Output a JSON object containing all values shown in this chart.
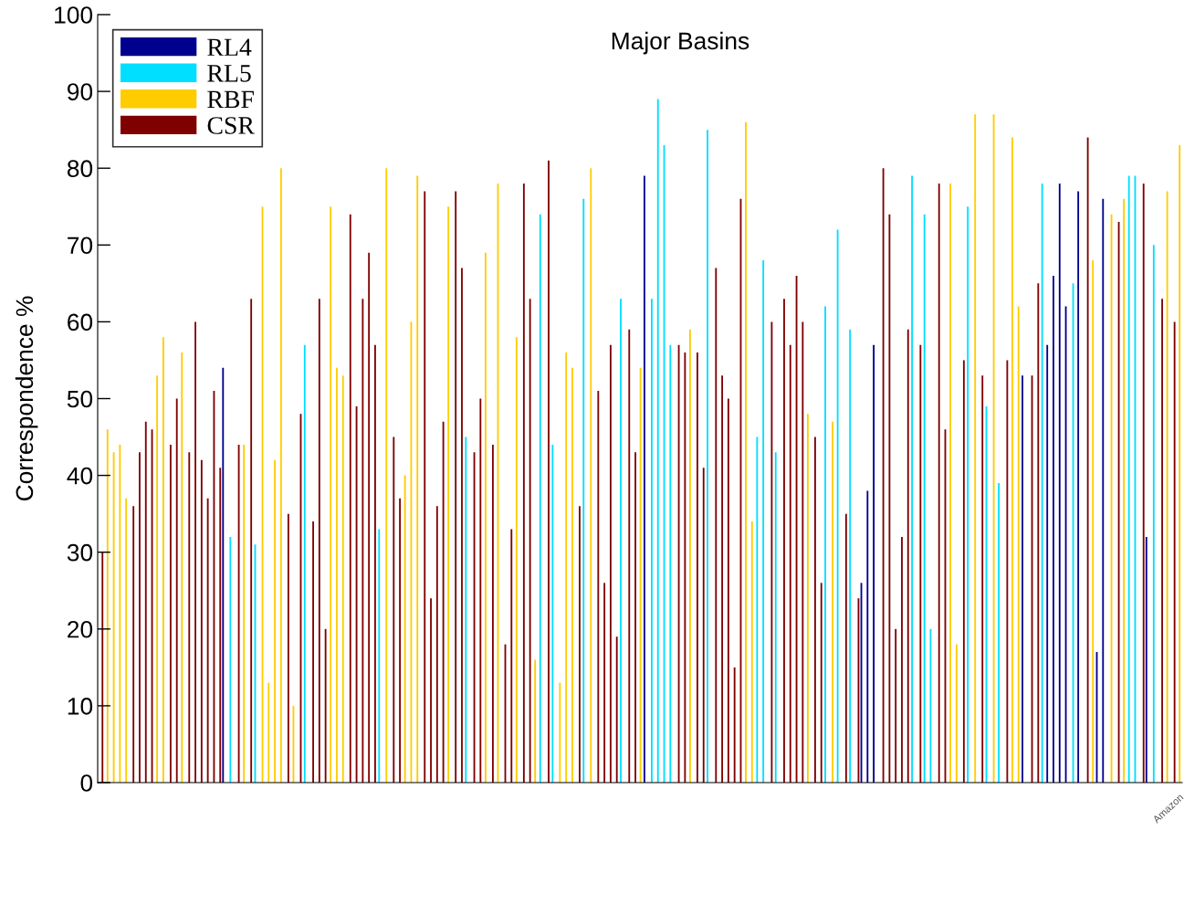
{
  "chart_data": {
    "type": "bar",
    "title": "Major Basins",
    "ylabel": "Correspondence %",
    "categories": [
      null,
      null,
      null,
      null,
      null,
      null,
      null,
      null,
      null,
      null,
      null,
      null,
      null,
      null,
      null,
      null,
      null,
      null,
      null,
      null,
      null,
      null,
      null,
      null,
      null,
      null,
      null,
      null,
      null,
      null,
      null,
      null,
      null,
      null,
      null,
      null,
      null,
      null,
      null,
      null,
      null,
      null,
      null,
      null,
      null,
      null,
      null,
      null,
      null,
      null,
      null,
      null,
      null,
      null,
      null,
      null,
      null,
      null,
      null,
      null,
      null,
      null,
      null,
      null,
      null,
      null,
      null,
      null,
      null,
      null,
      null,
      null,
      null,
      null,
      null,
      null,
      null,
      null,
      null,
      null,
      null,
      null,
      null,
      null,
      null,
      null,
      null,
      null,
      null,
      null,
      null,
      null,
      null,
      null,
      null,
      null,
      null,
      null,
      null,
      null,
      null,
      null,
      null,
      null,
      null,
      null,
      null,
      null,
      null,
      null,
      null,
      null,
      null,
      null,
      null,
      null,
      null,
      null,
      null,
      null,
      null,
      null,
      null,
      null,
      null,
      null,
      null,
      null,
      null,
      null,
      null,
      null,
      null,
      null,
      null,
      null,
      null,
      null,
      null,
      null,
      null,
      null,
      null,
      null,
      null,
      null,
      null,
      null,
      null,
      null,
      null,
      null,
      null,
      null,
      null,
      null,
      null,
      null,
      null,
      null,
      null,
      null,
      null,
      null,
      null,
      null,
      null,
      null,
      null,
      null,
      null,
      null,
      null,
      null,
      "Amazon"
    ],
    "series": [
      {
        "name": "RL4",
        "color": "#00008f",
        "values": [
          null,
          null,
          null,
          null,
          null,
          null,
          null,
          null,
          null,
          null,
          null,
          null,
          null,
          null,
          null,
          null,
          null,
          null,
          null,
          null,
          54,
          null,
          null,
          null,
          null,
          null,
          null,
          null,
          null,
          null,
          null,
          null,
          null,
          null,
          null,
          null,
          null,
          null,
          null,
          null,
          null,
          null,
          null,
          null,
          null,
          null,
          null,
          null,
          null,
          null,
          null,
          null,
          null,
          null,
          null,
          null,
          null,
          null,
          null,
          null,
          null,
          null,
          null,
          null,
          null,
          null,
          null,
          null,
          null,
          null,
          null,
          null,
          null,
          null,
          null,
          null,
          null,
          null,
          null,
          null,
          null,
          null,
          null,
          null,
          null,
          null,
          null,
          null,
          79,
          null,
          null,
          null,
          null,
          null,
          null,
          null,
          null,
          null,
          null,
          null,
          null,
          null,
          null,
          null,
          null,
          null,
          null,
          null,
          null,
          null,
          null,
          null,
          null,
          null,
          null,
          null,
          null,
          null,
          null,
          null,
          null,
          null,
          null,
          26,
          38,
          57,
          null,
          null,
          null,
          null,
          null,
          null,
          null,
          null,
          null,
          null,
          null,
          null,
          null,
          null,
          null,
          null,
          null,
          null,
          null,
          null,
          null,
          null,
          null,
          53,
          null,
          null,
          null,
          57,
          66,
          78,
          62,
          null,
          77,
          null,
          null,
          17,
          76,
          null,
          null,
          null,
          null,
          null,
          null,
          32,
          null,
          null,
          null,
          null,
          null
        ]
      },
      {
        "name": "RL5",
        "color": "#00dfff",
        "values": [
          null,
          null,
          null,
          null,
          null,
          null,
          null,
          null,
          null,
          null,
          null,
          null,
          null,
          null,
          null,
          null,
          null,
          null,
          null,
          null,
          null,
          32,
          null,
          null,
          null,
          31,
          null,
          null,
          null,
          null,
          null,
          null,
          null,
          57,
          null,
          null,
          null,
          null,
          null,
          null,
          null,
          null,
          null,
          null,
          null,
          33,
          null,
          null,
          null,
          null,
          null,
          null,
          null,
          null,
          null,
          null,
          null,
          null,
          null,
          45,
          null,
          null,
          null,
          null,
          null,
          null,
          null,
          null,
          null,
          null,
          null,
          74,
          null,
          44,
          null,
          null,
          null,
          null,
          76,
          null,
          null,
          null,
          null,
          null,
          63,
          null,
          null,
          null,
          null,
          63,
          89,
          83,
          57,
          null,
          null,
          null,
          null,
          null,
          85,
          null,
          null,
          null,
          null,
          null,
          null,
          null,
          45,
          68,
          null,
          43,
          null,
          null,
          null,
          null,
          null,
          null,
          null,
          62,
          null,
          72,
          null,
          59,
          null,
          null,
          null,
          null,
          null,
          null,
          null,
          null,
          null,
          79,
          null,
          74,
          20,
          null,
          null,
          null,
          null,
          null,
          75,
          null,
          null,
          49,
          null,
          39,
          null,
          null,
          null,
          null,
          null,
          null,
          78,
          null,
          null,
          null,
          null,
          65,
          null,
          null,
          null,
          null,
          null,
          null,
          null,
          null,
          79,
          79,
          null,
          null,
          70,
          null,
          null,
          null,
          null
        ]
      },
      {
        "name": "RBF",
        "color": "#ffcc00",
        "values": [
          null,
          46,
          43,
          44,
          37,
          null,
          null,
          null,
          null,
          53,
          58,
          null,
          null,
          56,
          null,
          null,
          null,
          null,
          null,
          null,
          null,
          null,
          null,
          44,
          null,
          null,
          75,
          13,
          42,
          80,
          null,
          10,
          null,
          null,
          null,
          null,
          null,
          75,
          54,
          53,
          null,
          null,
          null,
          null,
          null,
          null,
          80,
          null,
          null,
          40,
          60,
          79,
          null,
          null,
          null,
          null,
          75,
          null,
          null,
          null,
          null,
          null,
          69,
          null,
          78,
          null,
          null,
          58,
          null,
          null,
          16,
          null,
          null,
          null,
          13,
          56,
          54,
          null,
          null,
          80,
          null,
          null,
          null,
          null,
          null,
          null,
          null,
          54,
          null,
          null,
          null,
          null,
          null,
          null,
          null,
          59,
          null,
          null,
          null,
          null,
          null,
          null,
          null,
          null,
          86,
          34,
          null,
          null,
          null,
          null,
          null,
          null,
          null,
          null,
          48,
          null,
          null,
          null,
          47,
          null,
          null,
          null,
          null,
          null,
          null,
          null,
          null,
          null,
          null,
          null,
          null,
          null,
          null,
          null,
          null,
          null,
          null,
          78,
          18,
          null,
          null,
          87,
          null,
          null,
          87,
          null,
          null,
          84,
          62,
          null,
          null,
          null,
          null,
          null,
          null,
          null,
          null,
          null,
          null,
          null,
          68,
          null,
          null,
          74,
          null,
          76,
          null,
          null,
          null,
          null,
          null,
          null,
          77,
          null,
          83
        ]
      },
      {
        "name": "CSR",
        "color": "#7f0000",
        "values": [
          30,
          null,
          null,
          null,
          null,
          36,
          43,
          47,
          46,
          null,
          null,
          44,
          50,
          null,
          43,
          60,
          42,
          37,
          51,
          41,
          null,
          null,
          44,
          null,
          63,
          null,
          null,
          null,
          null,
          null,
          35,
          null,
          48,
          null,
          34,
          63,
          20,
          null,
          null,
          null,
          74,
          49,
          63,
          69,
          57,
          null,
          null,
          45,
          37,
          null,
          null,
          null,
          77,
          24,
          36,
          47,
          null,
          77,
          67,
          null,
          43,
          50,
          null,
          44,
          null,
          18,
          33,
          null,
          78,
          63,
          null,
          null,
          81,
          null,
          null,
          null,
          null,
          36,
          null,
          null,
          51,
          26,
          57,
          19,
          null,
          59,
          43,
          null,
          null,
          null,
          null,
          null,
          null,
          57,
          56,
          null,
          56,
          41,
          null,
          67,
          53,
          50,
          15,
          76,
          null,
          null,
          null,
          null,
          60,
          null,
          63,
          57,
          66,
          60,
          null,
          45,
          26,
          null,
          null,
          null,
          35,
          null,
          24,
          null,
          null,
          null,
          80,
          74,
          20,
          32,
          59,
          null,
          57,
          null,
          null,
          78,
          46,
          null,
          null,
          55,
          null,
          null,
          53,
          null,
          null,
          null,
          55,
          null,
          null,
          null,
          53,
          65,
          null,
          null,
          null,
          null,
          null,
          null,
          null,
          84,
          null,
          null,
          null,
          null,
          73,
          null,
          null,
          null,
          78,
          null,
          null,
          63,
          null,
          60,
          null
        ]
      }
    ],
    "ylim": [
      0,
      100
    ],
    "yticks": [
      0,
      10,
      20,
      30,
      40,
      50,
      60,
      70,
      80,
      90,
      100
    ],
    "grid": false,
    "legend": "top left"
  }
}
